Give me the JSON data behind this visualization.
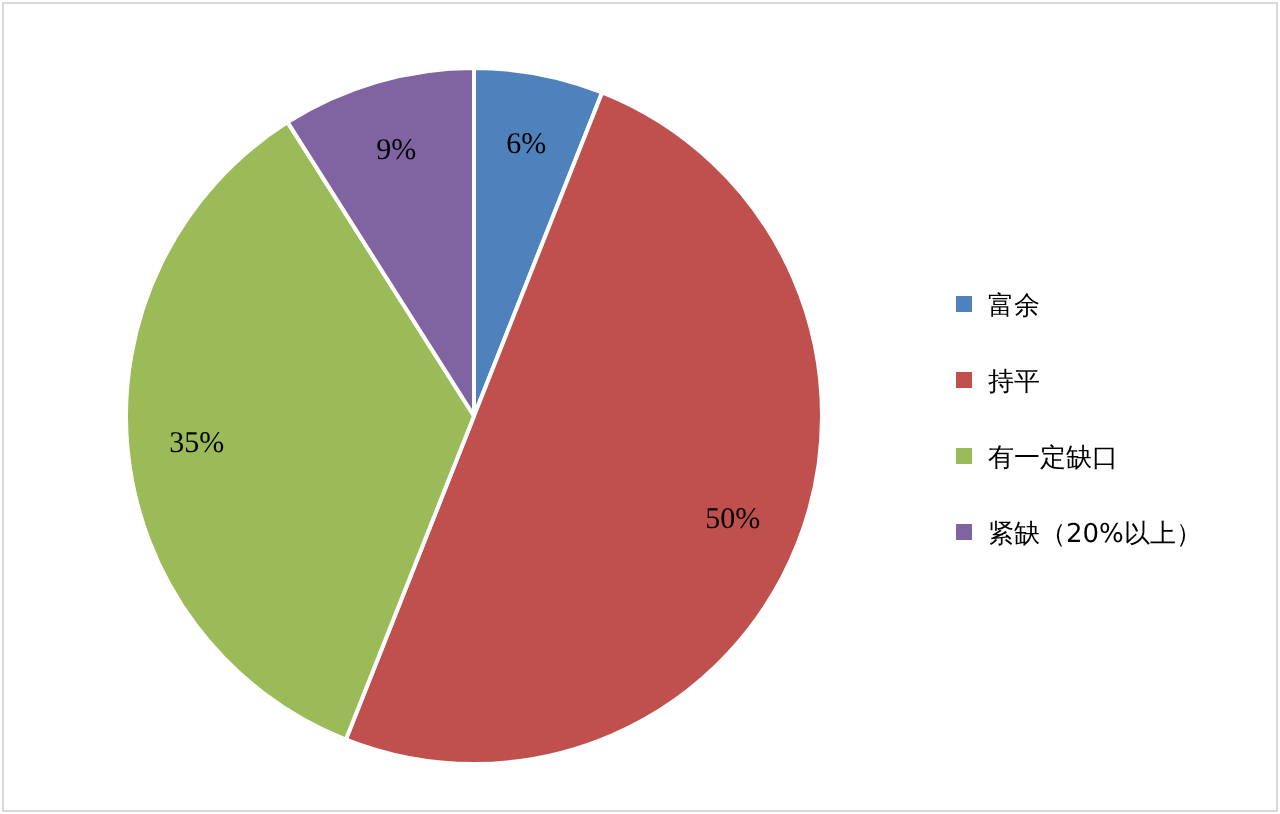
{
  "chart_data": {
    "type": "pie",
    "categories": [
      "富余",
      "持平",
      "有一定缺口",
      "紧缺（20%以上）"
    ],
    "values": [
      6,
      50,
      35,
      9
    ],
    "colors": [
      "#4f81bd",
      "#c0504d",
      "#9bbb59",
      "#8064a2"
    ],
    "value_labels": [
      "6%",
      "50%",
      "35%",
      "9%"
    ],
    "legend": "right"
  }
}
